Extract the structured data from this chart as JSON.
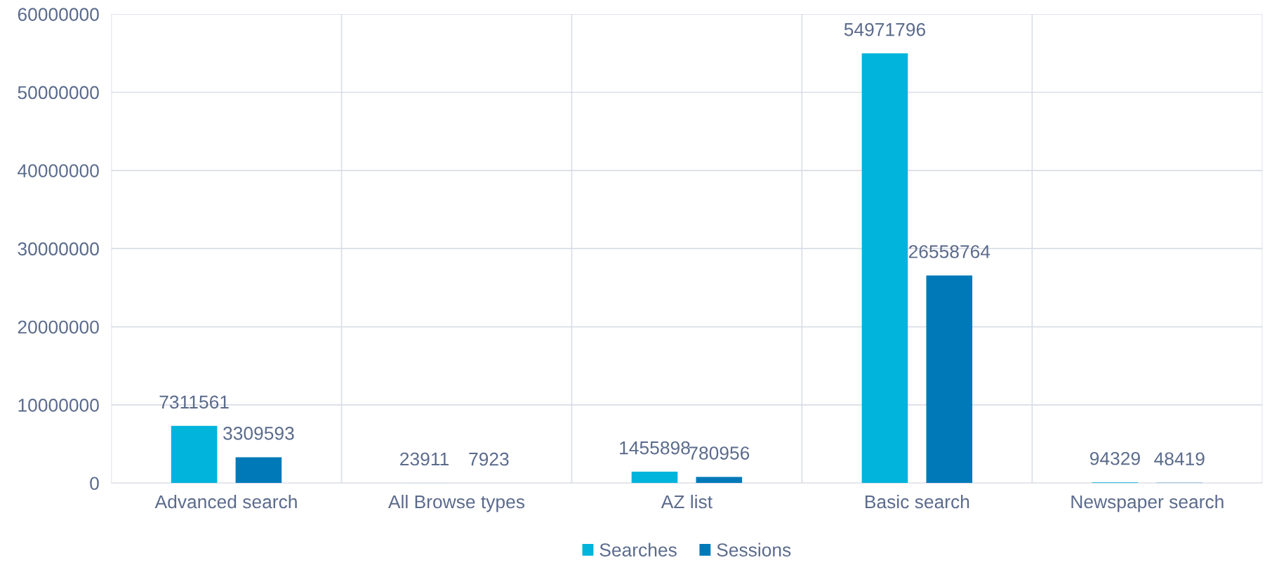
{
  "chart_data": {
    "type": "bar",
    "categories": [
      "Advanced search",
      "All Browse types",
      "AZ list",
      "Basic search",
      "Newspaper search"
    ],
    "series": [
      {
        "name": "Searches",
        "color": "#00b4dc",
        "values": [
          7311561,
          23911,
          1455898,
          54971796,
          94329
        ]
      },
      {
        "name": "Sessions",
        "color": "#0079b8",
        "values": [
          3309593,
          7923,
          780956,
          26558764,
          48419
        ]
      }
    ],
    "ylim": [
      0,
      60000000
    ],
    "yticks": [
      0,
      10000000,
      20000000,
      30000000,
      40000000,
      50000000,
      60000000
    ],
    "grid": true,
    "legend": "bottom",
    "data_labels": true
  }
}
